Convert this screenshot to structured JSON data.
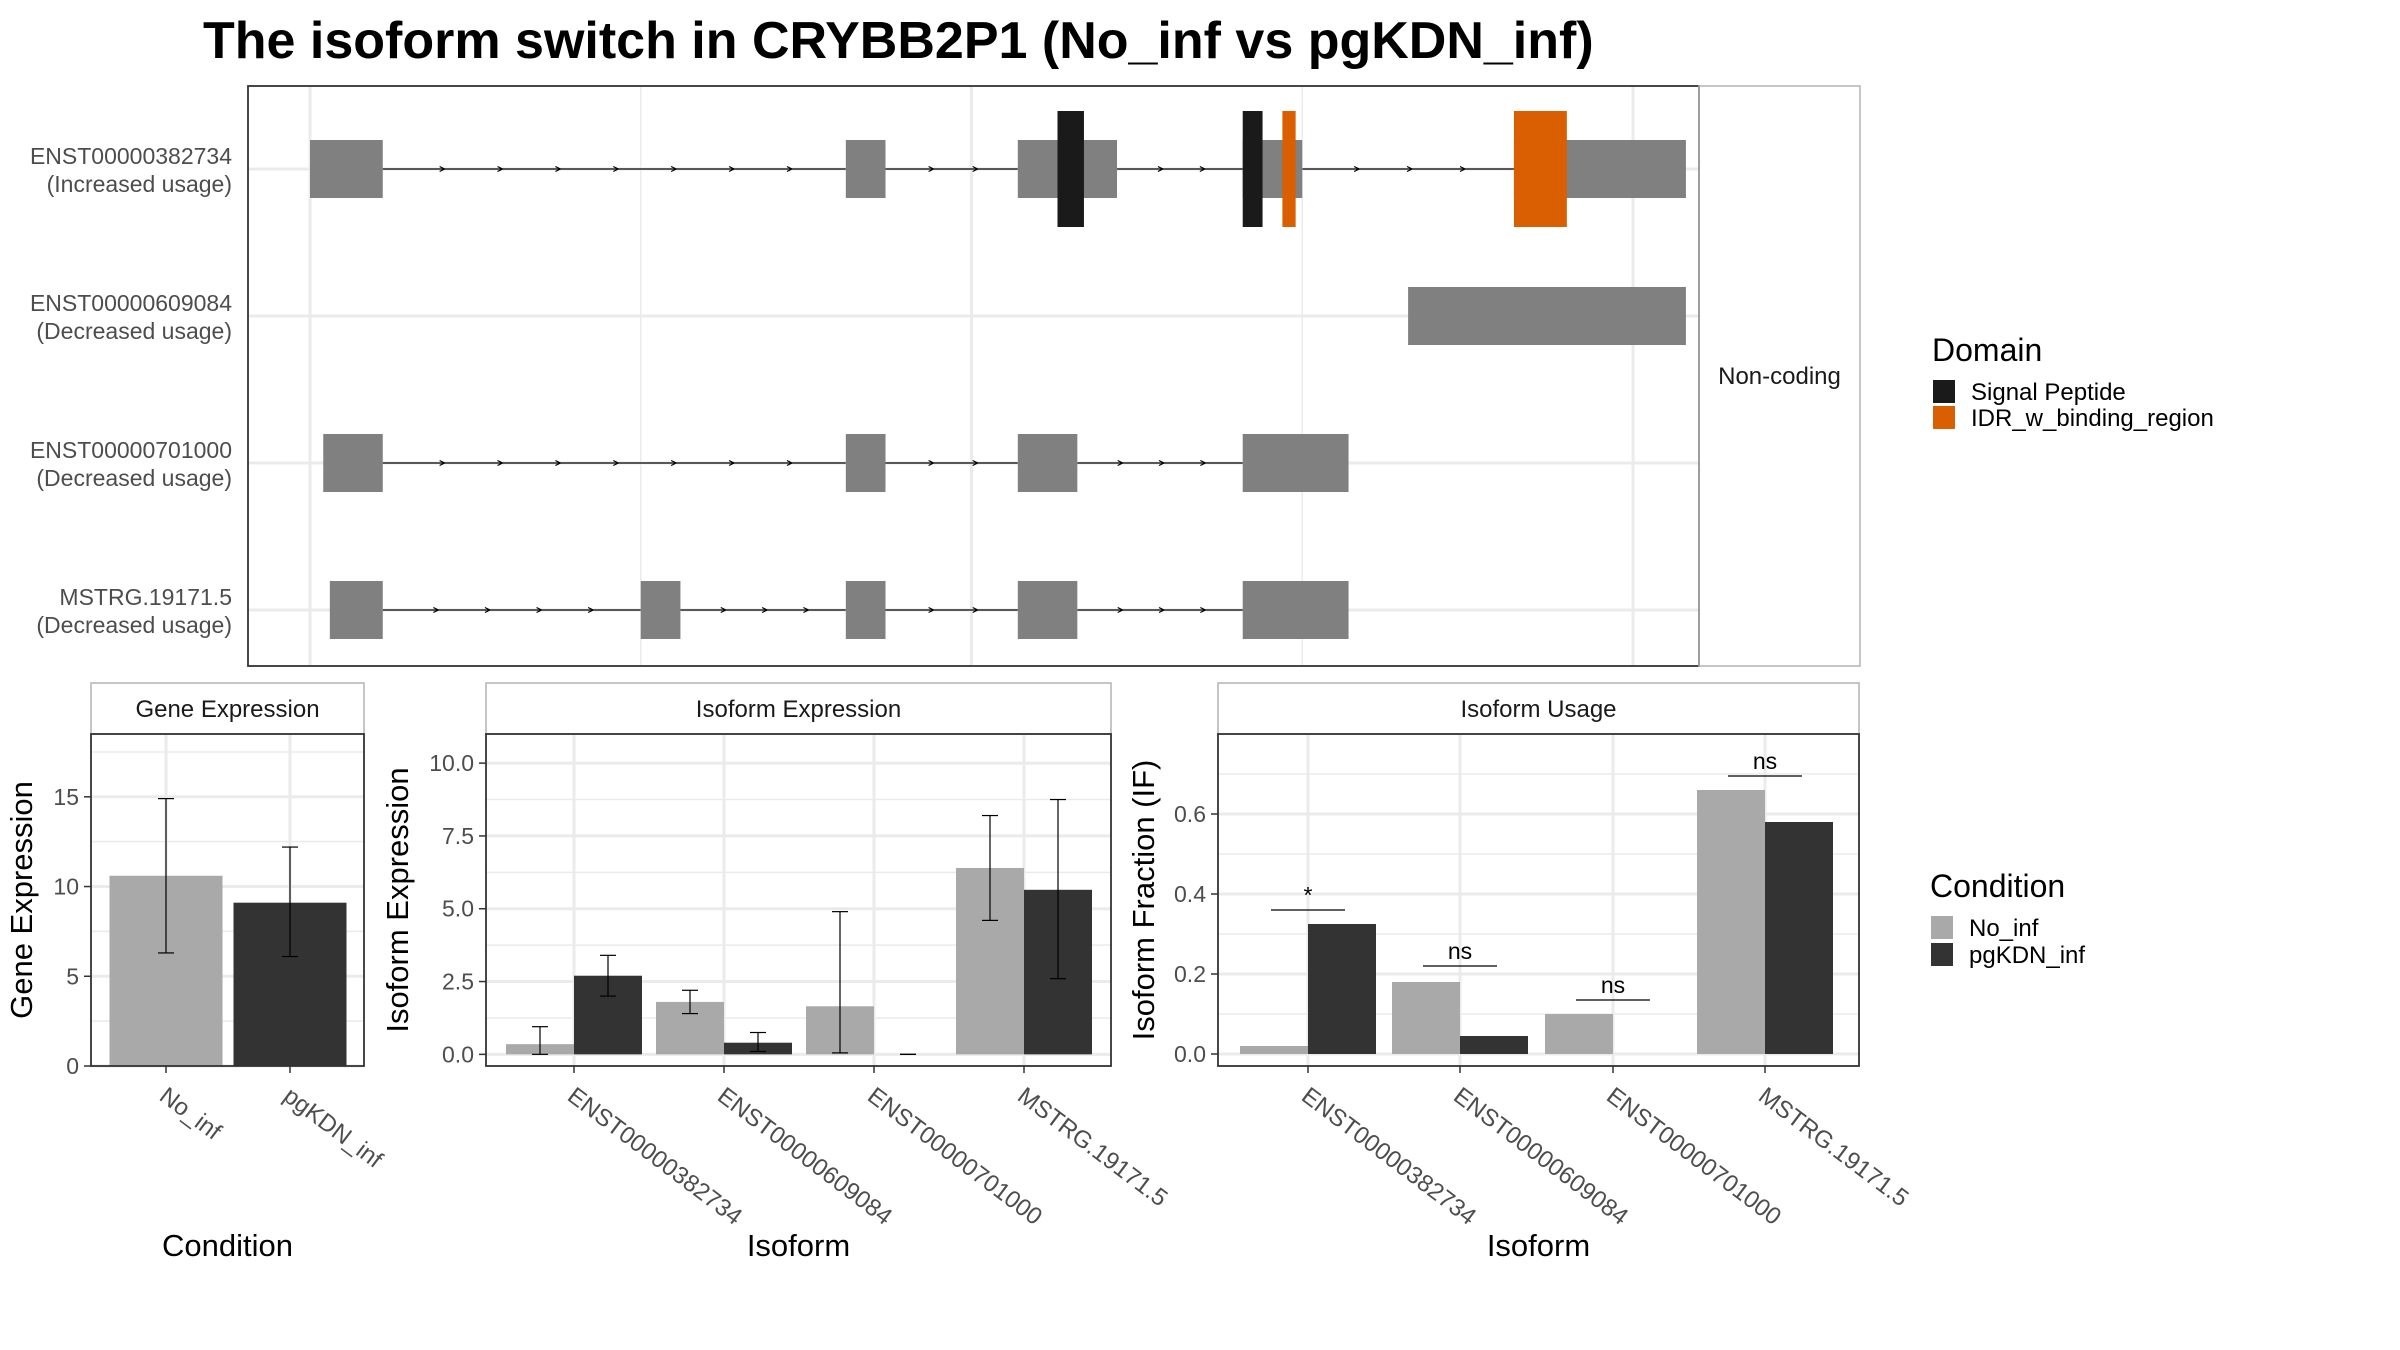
{
  "title": "The isoform switch in CRYBB2P1 (No_inf vs pgKDN_inf)",
  "colors": {
    "exon": "#808080",
    "signal_peptide": "#1a1a1a",
    "idr": "#d95f02",
    "no_inf": "#a9a9a9",
    "pgkdn_inf": "#333333",
    "grid": "#ebebeb",
    "strip_border": "#b3b3b3"
  },
  "structure": {
    "strip_label": "Non-coding",
    "x_range": [
      0,
      100
    ],
    "isoforms": [
      {
        "id": "ENST00000382734",
        "usage": "(Increased usage)",
        "exons": [
          [
            0,
            5.5
          ],
          [
            40.5,
            43.5
          ],
          [
            53.5,
            61
          ],
          [
            70.5,
            75
          ],
          [
            91,
            104
          ]
        ],
        "domains": [
          {
            "domain": "signal",
            "start": 56.5,
            "end": 58.5
          },
          {
            "domain": "signal",
            "start": 70.5,
            "end": 72
          },
          {
            "domain": "idr",
            "start": 73.5,
            "end": 74.5
          },
          {
            "domain": "idr",
            "start": 91,
            "end": 95
          }
        ]
      },
      {
        "id": "ENST00000609084",
        "usage": "(Decreased usage)",
        "exons": [
          [
            83,
            104
          ]
        ],
        "domains": []
      },
      {
        "id": "ENST00000701000",
        "usage": "(Decreased usage)",
        "exons": [
          [
            1,
            5.5
          ],
          [
            40.5,
            43.5
          ],
          [
            53.5,
            58
          ],
          [
            70.5,
            78.5
          ]
        ],
        "domains": []
      },
      {
        "id": "MSTRG.19171.5",
        "usage": "(Decreased usage)",
        "exons": [
          [
            1.5,
            5.5
          ],
          [
            25,
            28
          ],
          [
            40.5,
            43.5
          ],
          [
            53.5,
            58
          ],
          [
            70.5,
            78.5
          ]
        ],
        "domains": []
      }
    ]
  },
  "legend_domain": {
    "title": "Domain",
    "items": [
      {
        "label": "Signal Peptide",
        "key": "signal"
      },
      {
        "label": "IDR_w_binding_region",
        "key": "idr"
      }
    ]
  },
  "legend_condition": {
    "title": "Condition",
    "items": [
      {
        "label": "No_inf",
        "key": "no_inf"
      },
      {
        "label": "pgKDN_inf",
        "key": "pgkdn_inf"
      }
    ]
  },
  "chart_data": [
    {
      "type": "bar",
      "title": "Gene Expression",
      "xlabel": "Condition",
      "ylabel": "Gene Expression",
      "categories": [
        "No_inf",
        "pgKDN_inf"
      ],
      "series": [
        {
          "name": "No_inf",
          "values": [
            10.6,
            null
          ],
          "lower": [
            6.3,
            null
          ],
          "upper": [
            14.9,
            null
          ]
        },
        {
          "name": "pgKDN_inf",
          "values": [
            null,
            9.1
          ],
          "lower": [
            null,
            6.1
          ],
          "upper": [
            null,
            12.2
          ]
        }
      ],
      "ylim": [
        0,
        18.5
      ],
      "yticks": [
        0,
        5,
        10,
        15
      ],
      "ytick_labels": [
        "0",
        "5",
        "10",
        "15"
      ]
    },
    {
      "type": "bar",
      "title": "Isoform Expression",
      "xlabel": "Isoform",
      "ylabel": "Isoform Expression",
      "categories": [
        "ENST00000382734",
        "ENST00000609084",
        "ENST00000701000",
        "MSTRG.19171.5"
      ],
      "series": [
        {
          "name": "No_inf",
          "values": [
            0.35,
            1.8,
            1.65,
            6.4
          ],
          "lower": [
            0.0,
            1.4,
            0.05,
            4.6
          ],
          "upper": [
            0.95,
            2.2,
            4.9,
            8.2
          ]
        },
        {
          "name": "pgKDN_inf",
          "values": [
            2.7,
            0.4,
            0.0,
            5.65
          ],
          "lower": [
            2.0,
            0.1,
            0.0,
            2.6
          ],
          "upper": [
            3.4,
            0.75,
            0.0,
            8.75
          ]
        }
      ],
      "ylim": [
        -0.4,
        11.0
      ],
      "yticks": [
        0,
        2.5,
        5,
        7.5,
        10
      ],
      "ytick_labels": [
        "0.0",
        "2.5",
        "5.0",
        "7.5",
        "10.0"
      ]
    },
    {
      "type": "bar",
      "title": "Isoform Usage",
      "xlabel": "Isoform",
      "ylabel": "Isoform Fraction (IF)",
      "categories": [
        "ENST00000382734",
        "ENST00000609084",
        "ENST00000701000",
        "MSTRG.19171.5"
      ],
      "series": [
        {
          "name": "No_inf",
          "values": [
            0.02,
            0.18,
            0.1,
            0.66
          ]
        },
        {
          "name": "pgKDN_inf",
          "values": [
            0.325,
            0.045,
            0.0,
            0.58
          ]
        }
      ],
      "significance": [
        "*",
        "ns",
        "ns",
        "ns"
      ],
      "sig_y": [
        0.36,
        0.22,
        0.135,
        0.695
      ],
      "ylim": [
        -0.03,
        0.8
      ],
      "yticks": [
        0,
        0.2,
        0.4,
        0.6
      ],
      "ytick_labels": [
        "0.0",
        "0.2",
        "0.4",
        "0.6"
      ]
    }
  ]
}
